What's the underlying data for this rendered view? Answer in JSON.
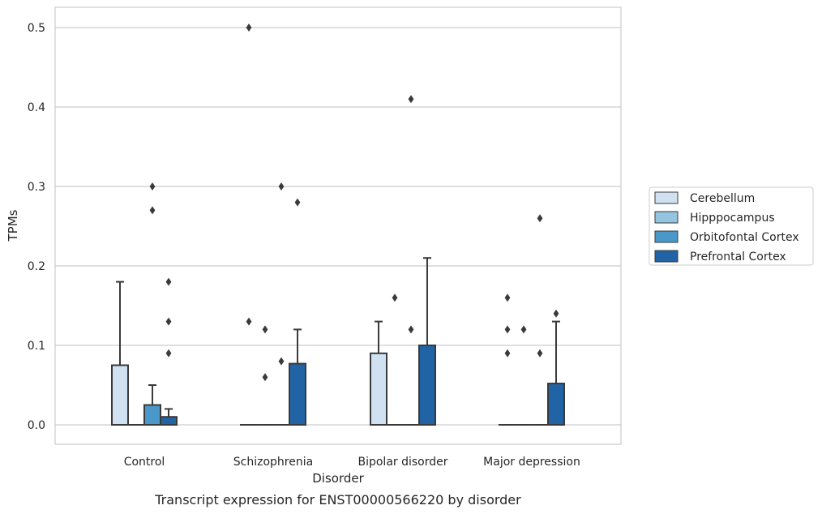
{
  "chart_data": {
    "type": "box",
    "title": "",
    "caption": "Transcript expression for ENST00000566220 by disorder",
    "xlabel": "Disorder",
    "ylabel": "TPMs",
    "ylim": [
      -0.025,
      0.525
    ],
    "yticks": [
      0.0,
      0.1,
      0.2,
      0.3,
      0.4,
      0.5
    ],
    "ytick_labels": [
      "0.0",
      "0.1",
      "0.2",
      "0.3",
      "0.4",
      "0.5"
    ],
    "grid": "horizontal",
    "legend_position": "right",
    "categories": [
      "Control",
      "Schizophrenia",
      "Bipolar disorder",
      "Major depression"
    ],
    "series": [
      {
        "name": "Cerebellum",
        "color": "#d0e1f2",
        "boxes": [
          {
            "q1": 0.0,
            "median": 0.0,
            "q3": 0.075,
            "whisker_low": 0.0,
            "whisker_high": 0.18,
            "outliers": []
          },
          {
            "q1": 0.0,
            "median": 0.0,
            "q3": 0.0,
            "whisker_low": 0.0,
            "whisker_high": 0.0,
            "outliers": [
              0.5,
              0.13
            ]
          },
          {
            "q1": 0.0,
            "median": 0.0,
            "q3": 0.09,
            "whisker_low": 0.0,
            "whisker_high": 0.13,
            "outliers": []
          },
          {
            "q1": 0.0,
            "median": 0.0,
            "q3": 0.0,
            "whisker_low": 0.0,
            "whisker_high": 0.0,
            "outliers": [
              0.16,
              0.12,
              0.09
            ]
          }
        ]
      },
      {
        "name": "Hipppocampus",
        "color": "#94c4df",
        "boxes": [
          {
            "q1": 0.0,
            "median": 0.0,
            "q3": 0.0,
            "whisker_low": 0.0,
            "whisker_high": 0.0,
            "outliers": []
          },
          {
            "q1": 0.0,
            "median": 0.0,
            "q3": 0.0,
            "whisker_low": 0.0,
            "whisker_high": 0.0,
            "outliers": [
              0.12,
              0.06
            ]
          },
          {
            "q1": 0.0,
            "median": 0.0,
            "q3": 0.0,
            "whisker_low": 0.0,
            "whisker_high": 0.0,
            "outliers": [
              0.16
            ]
          },
          {
            "q1": 0.0,
            "median": 0.0,
            "q3": 0.0,
            "whisker_low": 0.0,
            "whisker_high": 0.0,
            "outliers": [
              0.12
            ]
          }
        ]
      },
      {
        "name": "Orbitofontal Cortex",
        "color": "#4a98c9",
        "boxes": [
          {
            "q1": 0.0,
            "median": 0.0,
            "q3": 0.025,
            "whisker_low": 0.0,
            "whisker_high": 0.05,
            "outliers": [
              0.3,
              0.27
            ]
          },
          {
            "q1": 0.0,
            "median": 0.0,
            "q3": 0.0,
            "whisker_low": 0.0,
            "whisker_high": 0.0,
            "outliers": [
              0.3,
              0.08
            ]
          },
          {
            "q1": 0.0,
            "median": 0.0,
            "q3": 0.0,
            "whisker_low": 0.0,
            "whisker_high": 0.0,
            "outliers": [
              0.41,
              0.12
            ]
          },
          {
            "q1": 0.0,
            "median": 0.0,
            "q3": 0.0,
            "whisker_low": 0.0,
            "whisker_high": 0.0,
            "outliers": [
              0.26,
              0.09
            ]
          }
        ]
      },
      {
        "name": "Prefrontal Cortex",
        "color": "#2164a6",
        "boxes": [
          {
            "q1": 0.0,
            "median": 0.0,
            "q3": 0.01,
            "whisker_low": 0.0,
            "whisker_high": 0.02,
            "outliers": [
              0.18,
              0.13,
              0.09
            ]
          },
          {
            "q1": 0.0,
            "median": 0.0,
            "q3": 0.077,
            "whisker_low": 0.0,
            "whisker_high": 0.12,
            "outliers": [
              0.28
            ]
          },
          {
            "q1": 0.0,
            "median": 0.0,
            "q3": 0.1,
            "whisker_low": 0.0,
            "whisker_high": 0.21,
            "outliers": []
          },
          {
            "q1": 0.0,
            "median": 0.0,
            "q3": 0.052,
            "whisker_low": 0.0,
            "whisker_high": 0.13,
            "outliers": [
              0.14
            ]
          }
        ]
      }
    ]
  }
}
